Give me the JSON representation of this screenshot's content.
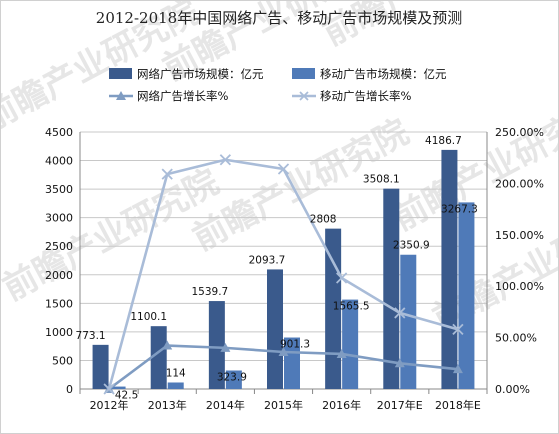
{
  "chart_data": {
    "type": "bar",
    "title": "2012-2018年中国网络广告、移动广告市场规模及预测",
    "categories": [
      "2012年",
      "2013年",
      "2014年",
      "2015年",
      "2016年",
      "2017年E",
      "2018年E"
    ],
    "series": [
      {
        "name": "网络广告市场规模：亿元",
        "type": "bar",
        "axis": "left",
        "color": "#3a5a8c",
        "values": [
          773.1,
          1100.1,
          1539.7,
          2093.7,
          2808,
          3508.1,
          4186.7
        ],
        "labels": [
          "773.1",
          "1100.1",
          "1539.7",
          "2093.7",
          "2808",
          "3508.1",
          "4186.7"
        ]
      },
      {
        "name": "移动广告市场规模：亿元",
        "type": "bar",
        "axis": "left",
        "color": "#4f7ab8",
        "values": [
          42.5,
          114,
          323.9,
          901.3,
          1565.5,
          2350.9,
          3267.3
        ],
        "labels": [
          "42.5",
          "114",
          "323.9",
          "901.3",
          "1565.5",
          "2350.9",
          "3267.3"
        ]
      },
      {
        "name": "网络广告增长率%",
        "type": "line",
        "axis": "right",
        "color": "#7f9cc2",
        "marker": "triangle",
        "values": [
          0.0,
          42.3,
          40.0,
          36.0,
          34.1,
          25.0,
          19.3
        ]
      },
      {
        "name": "移动广告增长率%",
        "type": "line",
        "axis": "right",
        "color": "#a9bcd8",
        "marker": "x",
        "values": [
          0.0,
          209.0,
          223.0,
          214.0,
          108.0,
          74.0,
          58.0
        ]
      }
    ],
    "y_left": {
      "min": 0,
      "max": 4500,
      "step": 500,
      "ticks": [
        "0",
        "500",
        "1000",
        "1500",
        "2000",
        "2500",
        "3000",
        "3500",
        "4000",
        "4500"
      ]
    },
    "y_right": {
      "min": 0,
      "max": 250,
      "step": 50,
      "ticks": [
        "0.00%",
        "50.00%",
        "100.00%",
        "150.00%",
        "200.00%",
        "250.00%"
      ]
    },
    "grid": true,
    "legend": "top"
  },
  "watermark": "前瞻产业研究院"
}
